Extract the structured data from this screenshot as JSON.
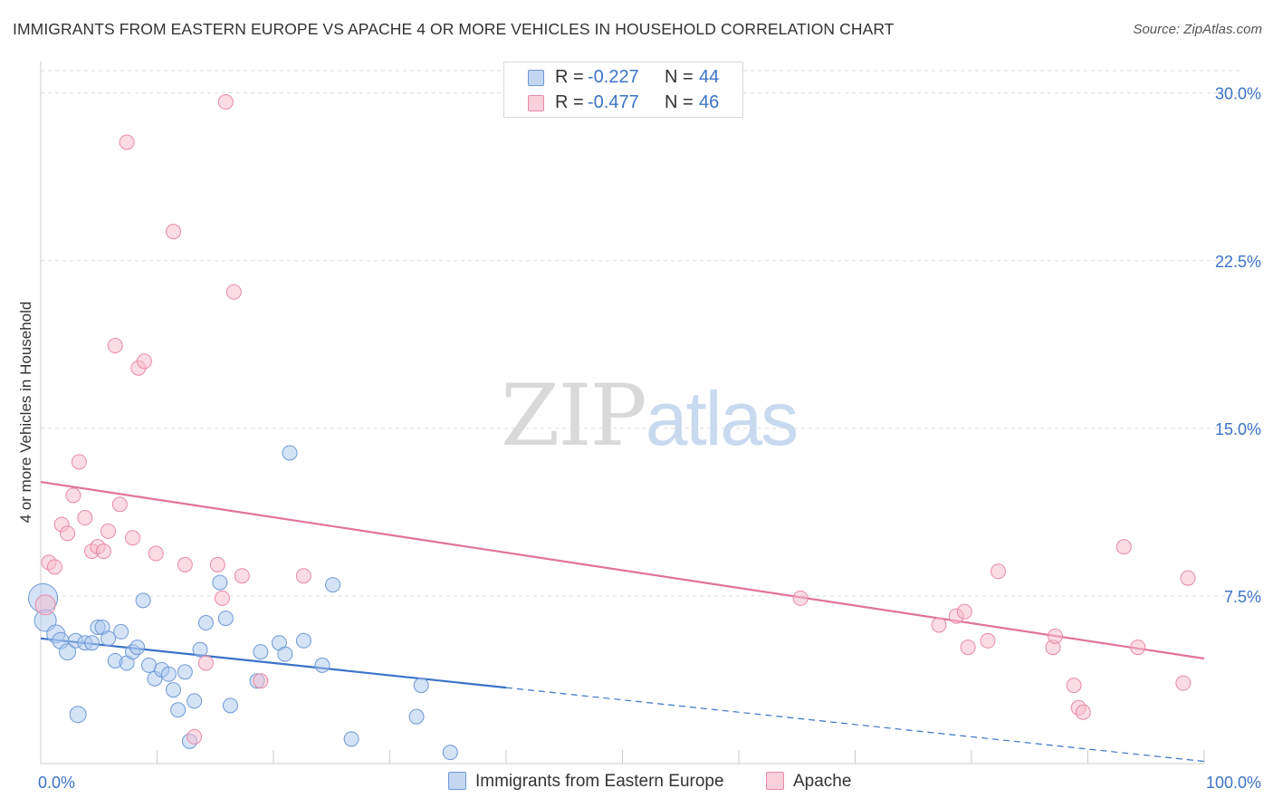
{
  "header": {
    "title": "IMMIGRANTS FROM EASTERN EUROPE VS APACHE 4 OR MORE VEHICLES IN HOUSEHOLD CORRELATION CHART",
    "source": "Source: ZipAtlas.com"
  },
  "watermark": {
    "zip": "ZIP",
    "atlas": "atlas"
  },
  "legend": {
    "r_label": "R =",
    "n_label": "N =",
    "series1": {
      "r": "-0.227",
      "n": "44"
    },
    "series2": {
      "r": "-0.477",
      "n": "46"
    }
  },
  "chart_data": {
    "type": "scatter",
    "title": "IMMIGRANTS FROM EASTERN EUROPE VS APACHE 4 OR MORE VEHICLES IN HOUSEHOLD CORRELATION CHART",
    "xlabel": "",
    "ylabel": "4 or more Vehicles in Household",
    "xlim": [
      0,
      100
    ],
    "ylim": [
      0,
      31
    ],
    "x_tick_labels": [
      "0.0%",
      "100.0%"
    ],
    "y_ticks": [
      7.5,
      15.0,
      22.5,
      30.0
    ],
    "y_tick_labels": [
      "7.5%",
      "15.0%",
      "22.5%",
      "30.0%"
    ],
    "grid": true,
    "legend_position": "bottom",
    "colors": {
      "series1_fill": "#a9c7ee",
      "series1_stroke": "#6f9ad6",
      "series1_line": "#3b73c8",
      "series2_fill": "#f7b9cc",
      "series2_stroke": "#e88aa8",
      "series2_line": "#e0739b",
      "value_text": "#3b73c8",
      "grid": "#dddddd",
      "axis": "#cccccc"
    },
    "series": [
      {
        "name": "Immigrants from Eastern Europe",
        "r": -0.227,
        "n": 44,
        "trend": {
          "x0": 0,
          "y0": 5.6,
          "x1": 40,
          "y1": 3.4,
          "dash_to_x": 100,
          "dash_to_y": 0.1
        },
        "points": [
          [
            0.2,
            7.4,
            16
          ],
          [
            0.4,
            6.4,
            12
          ],
          [
            1.3,
            5.8,
            10
          ],
          [
            1.7,
            5.5,
            9
          ],
          [
            2.3,
            5.0,
            9
          ],
          [
            3.0,
            5.5,
            8
          ],
          [
            3.2,
            2.2,
            9
          ],
          [
            3.8,
            5.4,
            8
          ],
          [
            4.4,
            5.4,
            8
          ],
          [
            4.9,
            6.1,
            8
          ],
          [
            5.3,
            6.1,
            8
          ],
          [
            5.8,
            5.6,
            8
          ],
          [
            6.4,
            4.6,
            8
          ],
          [
            6.9,
            5.9,
            8
          ],
          [
            7.4,
            4.5,
            8
          ],
          [
            7.9,
            5.0,
            8
          ],
          [
            8.3,
            5.2,
            8
          ],
          [
            8.8,
            7.3,
            8
          ],
          [
            9.3,
            4.4,
            8
          ],
          [
            9.8,
            3.8,
            8
          ],
          [
            10.4,
            4.2,
            8
          ],
          [
            11.0,
            4.0,
            8
          ],
          [
            11.4,
            3.3,
            8
          ],
          [
            11.8,
            2.4,
            8
          ],
          [
            12.4,
            4.1,
            8
          ],
          [
            12.8,
            1.0,
            8
          ],
          [
            13.2,
            2.8,
            8
          ],
          [
            13.7,
            5.1,
            8
          ],
          [
            14.2,
            6.3,
            8
          ],
          [
            15.4,
            8.1,
            8
          ],
          [
            15.9,
            6.5,
            8
          ],
          [
            16.3,
            2.6,
            8
          ],
          [
            18.6,
            3.7,
            8
          ],
          [
            18.9,
            5.0,
            8
          ],
          [
            20.5,
            5.4,
            8
          ],
          [
            21.0,
            4.9,
            8
          ],
          [
            21.4,
            13.9,
            8
          ],
          [
            22.6,
            5.5,
            8
          ],
          [
            24.2,
            4.4,
            8
          ],
          [
            25.1,
            8.0,
            8
          ],
          [
            26.7,
            1.1,
            8
          ],
          [
            32.3,
            2.1,
            8
          ],
          [
            32.7,
            3.5,
            8
          ],
          [
            35.2,
            0.5,
            8
          ]
        ]
      },
      {
        "name": "Apache",
        "r": -0.477,
        "n": 46,
        "trend": {
          "x0": 0,
          "y0": 12.6,
          "x1": 100,
          "y1": 4.7
        },
        "points": [
          [
            0.4,
            7.1,
            11
          ],
          [
            0.7,
            9.0,
            8
          ],
          [
            1.2,
            8.8,
            8
          ],
          [
            1.8,
            10.7,
            8
          ],
          [
            2.3,
            10.3,
            8
          ],
          [
            2.8,
            12.0,
            8
          ],
          [
            3.3,
            13.5,
            8
          ],
          [
            3.8,
            11.0,
            8
          ],
          [
            4.4,
            9.5,
            8
          ],
          [
            4.9,
            9.7,
            8
          ],
          [
            5.4,
            9.5,
            8
          ],
          [
            5.8,
            10.4,
            8
          ],
          [
            6.4,
            18.7,
            8
          ],
          [
            6.8,
            11.6,
            8
          ],
          [
            7.4,
            27.8,
            8
          ],
          [
            7.9,
            10.1,
            8
          ],
          [
            8.4,
            17.7,
            8
          ],
          [
            8.9,
            18.0,
            8
          ],
          [
            9.9,
            9.4,
            8
          ],
          [
            11.4,
            23.8,
            8
          ],
          [
            12.4,
            8.9,
            8
          ],
          [
            13.2,
            1.2,
            8
          ],
          [
            14.2,
            4.5,
            8
          ],
          [
            15.2,
            8.9,
            8
          ],
          [
            15.6,
            7.4,
            8
          ],
          [
            15.9,
            29.6,
            8
          ],
          [
            16.6,
            21.1,
            8
          ],
          [
            17.3,
            8.4,
            8
          ],
          [
            18.9,
            3.7,
            8
          ],
          [
            22.6,
            8.4,
            8
          ],
          [
            65.3,
            7.4,
            8
          ],
          [
            77.2,
            6.2,
            8
          ],
          [
            78.7,
            6.6,
            8
          ],
          [
            79.4,
            6.8,
            8
          ],
          [
            79.7,
            5.2,
            8
          ],
          [
            81.4,
            5.5,
            8
          ],
          [
            82.3,
            8.6,
            8
          ],
          [
            87.0,
            5.2,
            8
          ],
          [
            87.2,
            5.7,
            8
          ],
          [
            88.8,
            3.5,
            8
          ],
          [
            89.2,
            2.5,
            8
          ],
          [
            89.6,
            2.3,
            8
          ],
          [
            93.1,
            9.7,
            8
          ],
          [
            94.3,
            5.2,
            8
          ],
          [
            98.2,
            3.6,
            8
          ],
          [
            98.6,
            8.3,
            8
          ]
        ]
      }
    ]
  }
}
